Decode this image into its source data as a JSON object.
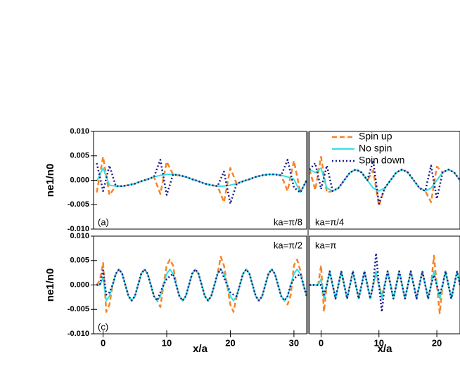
{
  "chart_data": [
    {
      "type": "line",
      "annotation": "ka=π/8",
      "panel_label": "(a)",
      "ylabel": "ne1/n0",
      "xlim": [
        -1.5,
        32
      ],
      "ylim": [
        -0.01,
        0.01
      ],
      "yticks": [
        {
          "value": -0.01,
          "label": "-0.010"
        },
        {
          "value": -0.005,
          "label": "-0.005"
        },
        {
          "value": 0,
          "label": "0.000"
        },
        {
          "value": 0.005,
          "label": "0.005"
        },
        {
          "value": 0.01,
          "label": "0.010"
        }
      ],
      "x": [
        -1,
        0,
        1,
        2,
        3,
        4,
        5,
        6,
        7,
        8,
        9,
        10,
        11,
        12,
        13,
        14,
        15,
        16,
        17,
        18,
        19,
        20,
        21,
        22,
        23,
        24,
        25,
        26,
        27,
        28,
        29,
        30,
        31,
        32
      ],
      "series": [
        {
          "color": "#f7842a",
          "dash": "dashed",
          "values": [
            -0.0025,
            0.0048,
            -0.003,
            -0.0012,
            -0.0012,
            -0.001,
            -0.0007,
            -0.0002,
            0.0002,
            0.0007,
            -0.0028,
            0.0038,
            0.0012,
            0.001,
            0.0007,
            0.0002,
            -0.0002,
            -0.0007,
            -0.001,
            -0.0012,
            -0.0045,
            0.0025,
            -0.0007,
            -0.0002,
            0.0002,
            0.0007,
            0.001,
            0.0012,
            0.0012,
            0.001,
            -0.0022,
            0.004,
            -0.0025,
            0
          ]
        },
        {
          "color": "#33e0e0",
          "dash": "solid",
          "values": [
            -0.0002,
            0.0025,
            -0.001,
            -0.0012,
            -0.0012,
            -0.001,
            -0.0007,
            -0.0002,
            0.0002,
            0.0007,
            0.001,
            0.0012,
            0.0012,
            0.001,
            0.0007,
            0.0002,
            -0.0002,
            -0.0007,
            -0.001,
            -0.0012,
            -0.0012,
            -0.001,
            -0.0007,
            -0.0002,
            0.0002,
            0.0007,
            0.001,
            0.0012,
            0.0012,
            0.001,
            0.0007,
            0.0002,
            -0.0025,
            0
          ]
        },
        {
          "color": "#1a1a8c",
          "dash": "dotted",
          "values": [
            0.0035,
            -0.0022,
            0.003,
            -0.0012,
            -0.0012,
            -0.001,
            -0.0007,
            -0.0002,
            0.0002,
            0.0007,
            0.0042,
            -0.003,
            0.0012,
            0.001,
            0.0007,
            0.0002,
            -0.0002,
            -0.0007,
            -0.001,
            -0.0012,
            0.0018,
            -0.0048,
            -0.0007,
            -0.0002,
            0.0002,
            0.0007,
            0.001,
            0.0012,
            0.0012,
            0.001,
            0.0042,
            -0.0015,
            -0.0025,
            0
          ]
        }
      ]
    },
    {
      "type": "line",
      "annotation": "ka=π/4",
      "legend": "upper left",
      "xlim": [
        -2,
        24
      ],
      "ylim": [
        -0.01,
        0.01
      ],
      "x": [
        -2,
        -1,
        0,
        1,
        2,
        3,
        4,
        5,
        6,
        7,
        8,
        9,
        10,
        11,
        12,
        13,
        14,
        15,
        16,
        17,
        18,
        19,
        20,
        21,
        22,
        23,
        24
      ],
      "series": [
        {
          "name": "Spin up",
          "color": "#f7842a",
          "dash": "dashed",
          "values": [
            0.0022,
            -0.002,
            0.0048,
            -0.0025,
            -0.0022,
            -0.0016,
            0,
            0.0016,
            0.0022,
            0.0016,
            0,
            0.002,
            -0.0052,
            -0.0016,
            0,
            0.0016,
            0.0022,
            0.0016,
            0,
            -0.0016,
            -0.0022,
            -0.0045,
            0.0028,
            0.0016,
            0.0022,
            0.0016,
            0
          ]
        },
        {
          "name": "No spin",
          "color": "#33e0e0",
          "dash": "solid",
          "values": [
            0.0022,
            0.0016,
            0.0025,
            -0.0016,
            -0.0022,
            -0.0016,
            0,
            0.0016,
            0.0022,
            0.0016,
            0,
            -0.0016,
            -0.0022,
            -0.0016,
            0,
            0.0016,
            0.0022,
            0.0016,
            0,
            -0.0016,
            -0.0022,
            -0.0016,
            0,
            0.0016,
            0.0022,
            0.0016,
            0
          ]
        },
        {
          "name": "Spin down",
          "color": "#1a1a8c",
          "dash": "dotted",
          "values": [
            0.0022,
            0.0035,
            -0.0018,
            0.003,
            -0.0022,
            -0.0016,
            0,
            0.0016,
            0.0022,
            0.0016,
            0,
            0.004,
            -0.0048,
            -0.0016,
            0,
            0.0016,
            0.0022,
            0.0016,
            0,
            -0.0016,
            -0.0022,
            0.003,
            -0.0038,
            0.0016,
            0.0022,
            0.0016,
            0
          ]
        }
      ]
    },
    {
      "type": "line",
      "annotation": "ka=π/2",
      "panel_label": "(c)",
      "ylabel": "ne1/n0",
      "xlabel": "x/a",
      "xlim": [
        -1.5,
        32
      ],
      "ylim": [
        -0.01,
        0.01
      ],
      "yticks": [
        {
          "value": -0.01,
          "label": "-0.010"
        },
        {
          "value": -0.005,
          "label": "-0.005"
        },
        {
          "value": 0,
          "label": "0.000"
        },
        {
          "value": 0.005,
          "label": "0.005"
        },
        {
          "value": 0.01,
          "label": "0.010"
        }
      ],
      "xticks": [
        0,
        10,
        20,
        30
      ],
      "x": [
        -1,
        -0.5,
        0,
        0.5,
        1,
        1.5,
        2,
        2.5,
        3,
        3.5,
        4,
        4.5,
        5,
        5.5,
        6,
        6.5,
        7,
        7.5,
        8,
        8.5,
        9,
        9.5,
        10,
        10.5,
        11,
        11.5,
        12,
        12.5,
        13,
        13.5,
        14,
        14.5,
        15,
        15.5,
        16,
        16.5,
        17,
        17.5,
        18,
        18.5,
        19,
        19.5,
        20,
        20.5,
        21,
        21.5,
        22,
        22.5,
        23,
        23.5,
        24,
        24.5,
        25,
        25.5,
        26,
        26.5,
        27,
        27.5,
        28,
        28.5,
        29,
        29.5,
        30,
        30.5,
        31,
        31.5,
        32
      ],
      "series": [
        {
          "color": "#f7842a",
          "dash": "dashed",
          "values": [
            0,
            0.001,
            0.0045,
            -0.0055,
            -0.004,
            0,
            0.0023,
            0.0032,
            0.0023,
            0,
            -0.0023,
            -0.0032,
            -0.0023,
            0,
            0.0023,
            0.0032,
            0.0023,
            0,
            -0.0023,
            -0.0032,
            -0.0045,
            0,
            0.004,
            0.0052,
            0.004,
            0,
            -0.0023,
            -0.0032,
            -0.0023,
            0,
            0.0023,
            0.0032,
            0.0023,
            0,
            -0.0023,
            -0.0032,
            -0.0023,
            0,
            0.0023,
            0.0058,
            0.004,
            0,
            -0.004,
            -0.0055,
            -0.0023,
            0,
            0.0023,
            0.0032,
            0.0023,
            0,
            -0.0023,
            -0.0032,
            -0.0023,
            0,
            0.0023,
            0.0032,
            0.0023,
            0,
            -0.0023,
            -0.0032,
            -0.004,
            -0.002,
            0.004,
            0.0052,
            0.003,
            0,
            -0.0023
          ]
        },
        {
          "color": "#33e0e0",
          "dash": "solid",
          "values": [
            0,
            0,
            0.0015,
            -0.0032,
            -0.0023,
            0,
            0.0023,
            0.0032,
            0.0023,
            0,
            -0.0023,
            -0.0032,
            -0.0023,
            0,
            0.0023,
            0.0032,
            0.0023,
            0,
            -0.0023,
            -0.0032,
            -0.0023,
            0,
            0.0023,
            0.0032,
            0.0023,
            0,
            -0.0023,
            -0.0032,
            -0.0023,
            0,
            0.0023,
            0.0032,
            0.0023,
            0,
            -0.0023,
            -0.0032,
            -0.0023,
            0,
            0.0023,
            0.0032,
            0.0023,
            0,
            -0.0023,
            -0.0032,
            -0.0023,
            0,
            0.0023,
            0.0032,
            0.0023,
            0,
            -0.0023,
            -0.0032,
            -0.0023,
            0,
            0.0023,
            0.0032,
            0.0023,
            0,
            -0.0023,
            -0.0032,
            -0.0023,
            0,
            0.0023,
            0.0032,
            0.0023,
            0,
            -0.0023
          ]
        },
        {
          "color": "#1a1a8c",
          "dash": "dotted",
          "values": [
            0,
            0,
            0.003,
            -0.002,
            -0.0015,
            0,
            0.0023,
            0.0032,
            0.0023,
            0,
            -0.0023,
            -0.0032,
            -0.0023,
            0,
            0.0023,
            0.0032,
            0.0023,
            0,
            -0.0023,
            -0.0032,
            -0.0015,
            0,
            0.0012,
            0.0018,
            0.0023,
            0,
            -0.0023,
            -0.0032,
            -0.0023,
            0,
            0.0023,
            0.0032,
            0.0023,
            0,
            -0.0023,
            -0.0032,
            -0.0023,
            0,
            0.0023,
            0.0032,
            0.0015,
            0,
            -0.0015,
            -0.002,
            -0.0023,
            0,
            0.0023,
            0.0032,
            0.0023,
            0,
            -0.0023,
            -0.0032,
            -0.0023,
            0,
            0.0023,
            0.0032,
            0.0023,
            0,
            -0.0023,
            -0.0032,
            -0.0023,
            0,
            0.0013,
            0.0018,
            0.0023,
            0,
            -0.0023
          ]
        }
      ]
    },
    {
      "type": "line",
      "annotation": "ka=π",
      "xlabel": "x/a",
      "xlim": [
        -2,
        24
      ],
      "ylim": [
        -0.01,
        0.01
      ],
      "xticks": [
        0,
        10,
        20
      ],
      "x": [
        -2,
        -1.5,
        -1,
        -0.5,
        0,
        0.5,
        1,
        1.5,
        2,
        2.5,
        3,
        3.5,
        4,
        4.5,
        5,
        5.5,
        6,
        6.5,
        7,
        7.5,
        8,
        8.5,
        9,
        9.5,
        10,
        10.5,
        11,
        11.5,
        12,
        12.5,
        13,
        13.5,
        14,
        14.5,
        15,
        15.5,
        16,
        16.5,
        17,
        17.5,
        18,
        18.5,
        19,
        19.5,
        20,
        20.5,
        21,
        21.5,
        22,
        22.5,
        23,
        23.5,
        24
      ],
      "series": [
        {
          "color": "#f7842a",
          "dash": "dashed",
          "values": [
            0,
            0,
            0,
            0,
            0.004,
            -0.0055,
            0,
            0.0028,
            0,
            -0.0028,
            0,
            0.0028,
            0,
            -0.0028,
            0,
            0.0028,
            0,
            -0.0028,
            0,
            0.0028,
            0,
            -0.0028,
            0,
            0.002,
            0,
            -0.002,
            0,
            0.0028,
            0,
            -0.0028,
            0,
            0.0028,
            0,
            -0.0028,
            0,
            0.0028,
            0,
            -0.0028,
            0,
            0.0028,
            0,
            -0.0028,
            0,
            0.006,
            0,
            -0.0058,
            0,
            0.0028,
            0,
            -0.0028,
            0,
            0.0028,
            0
          ]
        },
        {
          "color": "#33e0e0",
          "dash": "solid",
          "values": [
            0,
            0,
            0,
            0,
            0.0012,
            -0.0028,
            0,
            0.0028,
            0,
            -0.0028,
            0,
            0.0028,
            0,
            -0.0028,
            0,
            0.0028,
            0,
            -0.0028,
            0,
            0.0028,
            0,
            -0.0028,
            0,
            0.0028,
            0,
            -0.0028,
            0,
            0.0028,
            0,
            -0.0028,
            0,
            0.0028,
            0,
            -0.0028,
            0,
            0.0028,
            0,
            -0.0028,
            0,
            0.0028,
            0,
            -0.0028,
            0,
            0.0028,
            0,
            -0.0028,
            0,
            0.0028,
            0,
            -0.0028,
            0,
            0.0028,
            0
          ]
        },
        {
          "color": "#1a1a8c",
          "dash": "dotted",
          "values": [
            0,
            0,
            0,
            0,
            0,
            -0.002,
            0,
            0.0028,
            0,
            -0.0028,
            0,
            0.0028,
            0,
            -0.0028,
            0,
            0.0028,
            0,
            -0.0028,
            0,
            0.0028,
            0,
            -0.0028,
            0,
            0.0065,
            0,
            -0.0055,
            0,
            0.0028,
            0,
            -0.0028,
            0,
            0.0028,
            0,
            -0.0028,
            0,
            0.0028,
            0,
            -0.0028,
            0,
            0.0028,
            0,
            -0.0028,
            0,
            0.002,
            0,
            -0.002,
            0,
            0.0028,
            0,
            -0.0028,
            0,
            0.0028,
            0
          ]
        }
      ]
    }
  ]
}
